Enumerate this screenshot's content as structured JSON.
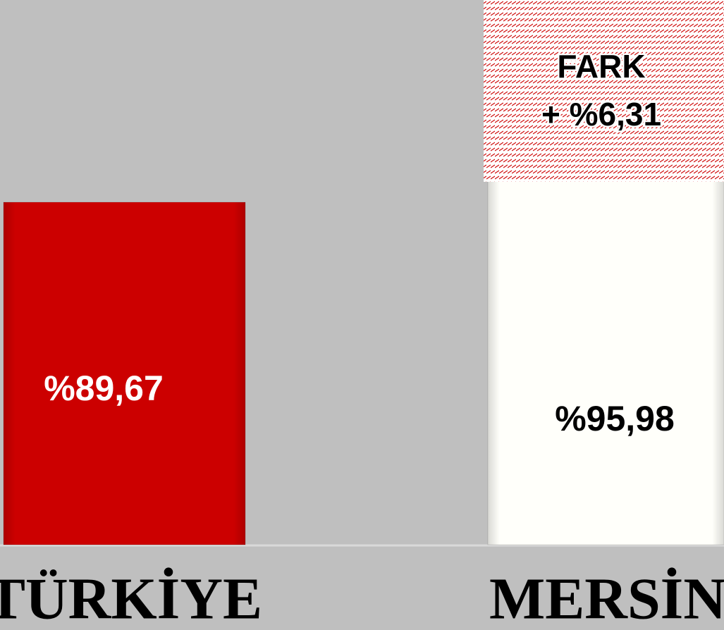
{
  "chart_data": {
    "type": "bar",
    "categories": [
      "TÜRKİYE",
      "MERSİN"
    ],
    "series": [
      {
        "colors": [
          "#cc0000",
          "#fffffa"
        ],
        "label_colors": [
          "#ffffff",
          "#000000"
        ],
        "values": [
          89.67,
          95.98
        ],
        "value_labels": [
          "%89,67",
          "%95,98"
        ]
      }
    ],
    "annotation": [
      "FARK",
      "+ %6,31"
    ]
  }
}
